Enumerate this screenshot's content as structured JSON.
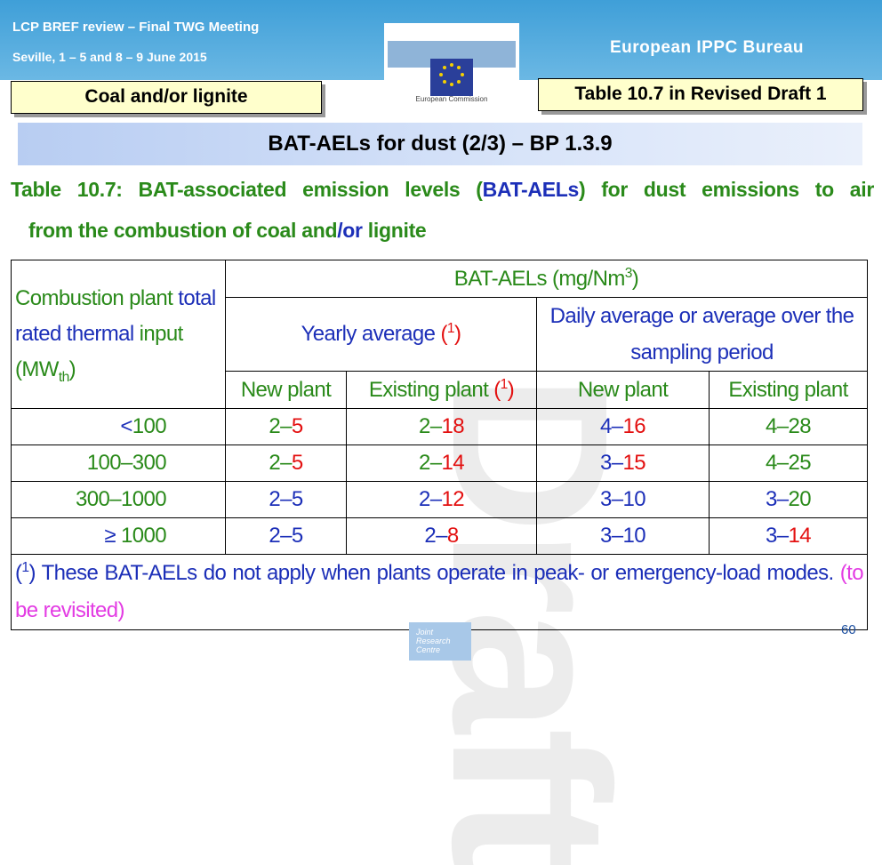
{
  "header": {
    "event": "LCP BREF review – Final TWG Meeting",
    "location": "Seville, 1 – 5 and 8 – 9 June 2015",
    "bureau": "European IPPC Bureau",
    "logo": "European Commission",
    "sector": "Coal and/or lignite",
    "reference": "Table 10.7 in Revised Draft 1"
  },
  "slide_title": "BAT-AELs for dust (2/3) – BP 1.3.9",
  "caption": [
    [
      {
        "text": "Table 10.7: BAT-associated emission levels (",
        "color": "green"
      },
      {
        "text": "BAT-AELs",
        "color": "blue"
      },
      {
        "text": ") for dust emissions to air",
        "color": "green"
      }
    ],
    [
      {
        "text": "from the combustion of coal and",
        "color": "green"
      },
      {
        "text": "/or",
        "color": "blue"
      },
      {
        "text": " lignite",
        "color": "green"
      }
    ]
  ],
  "table": {
    "header": {
      "row_label": [
        {
          "text": "Combustion plant ",
          "color": "green"
        },
        {
          "text": "total rated thermal ",
          "color": "blue"
        },
        {
          "text": "input (MW",
          "color": "green"
        },
        {
          "text": "th",
          "color": "green",
          "style": "sub"
        },
        {
          "text": ")",
          "color": "green"
        }
      ],
      "group": [
        {
          "text": "BAT-AELs (mg/Nm",
          "color": "green"
        },
        {
          "text": "3",
          "color": "green",
          "style": "sup"
        },
        {
          "text": ")",
          "color": "green"
        }
      ],
      "yearly": [
        {
          "text": "Yearly average ",
          "color": "blue"
        },
        {
          "text": "(",
          "color": "red"
        },
        {
          "text": "1",
          "color": "red",
          "style": "sup"
        },
        {
          "text": ")",
          "color": "red"
        }
      ],
      "daily": [
        {
          "text": "Daily average or average over the sampling period",
          "color": "blue"
        }
      ],
      "columns": [
        [
          {
            "text": "New plant",
            "color": "green"
          }
        ],
        [
          {
            "text": "Existing plant ",
            "color": "green"
          },
          {
            "text": "(",
            "color": "red"
          },
          {
            "text": "1",
            "color": "red",
            "style": "sup"
          },
          {
            "text": ")",
            "color": "red"
          }
        ],
        [
          {
            "text": "New plant",
            "color": "green"
          }
        ],
        [
          {
            "text": "Existing plant",
            "color": "green"
          }
        ]
      ]
    },
    "rows": [
      [
        [
          {
            "text": "<",
            "color": "blue"
          },
          {
            "text": "100",
            "color": "green"
          }
        ],
        [
          {
            "text": "2–",
            "color": "green"
          },
          {
            "text": "5",
            "color": "red"
          }
        ],
        [
          {
            "text": "2–",
            "color": "green"
          },
          {
            "text": "18",
            "color": "red"
          }
        ],
        [
          {
            "text": "4–",
            "color": "blue"
          },
          {
            "text": "16",
            "color": "red"
          }
        ],
        [
          {
            "text": "4–28",
            "color": "green"
          }
        ]
      ],
      [
        [
          {
            "text": "100–300",
            "color": "green"
          }
        ],
        [
          {
            "text": "2–",
            "color": "green"
          },
          {
            "text": "5",
            "color": "red"
          }
        ],
        [
          {
            "text": "2–",
            "color": "green"
          },
          {
            "text": "14",
            "color": "red"
          }
        ],
        [
          {
            "text": "3–",
            "color": "blue"
          },
          {
            "text": "15",
            "color": "red"
          }
        ],
        [
          {
            "text": "4–25",
            "color": "green"
          }
        ]
      ],
      [
        [
          {
            "text": "300–1000",
            "color": "green"
          }
        ],
        [
          {
            "text": "2–5",
            "color": "blue"
          }
        ],
        [
          {
            "text": "2–",
            "color": "blue"
          },
          {
            "text": "12",
            "color": "red"
          }
        ],
        [
          {
            "text": "3–10",
            "color": "blue"
          }
        ],
        [
          {
            "text": "3–",
            "color": "blue"
          },
          {
            "text": "20",
            "color": "green"
          }
        ]
      ],
      [
        [
          {
            "text": "≥ ",
            "color": "blue"
          },
          {
            "text": "1000",
            "color": "green"
          }
        ],
        [
          {
            "text": "2–5",
            "color": "blue"
          }
        ],
        [
          {
            "text": "2–",
            "color": "blue"
          },
          {
            "text": "8",
            "color": "red"
          }
        ],
        [
          {
            "text": "3–10",
            "color": "blue"
          }
        ],
        [
          {
            "text": "3–",
            "color": "blue"
          },
          {
            "text": "14",
            "color": "red"
          }
        ]
      ]
    ],
    "footnote": [
      {
        "text": "(",
        "color": "blue"
      },
      {
        "text": "1",
        "color": "blue",
        "style": "sup"
      },
      {
        "text": ") These BAT-AELs do not apply when plants operate in peak- or emergency-load modes. ",
        "color": "blue"
      },
      {
        "text": "(to be revisited)",
        "color": "magenta"
      }
    ]
  },
  "watermark": "Draft",
  "footer": {
    "logo": "Joint Research Centre",
    "page": "60"
  }
}
